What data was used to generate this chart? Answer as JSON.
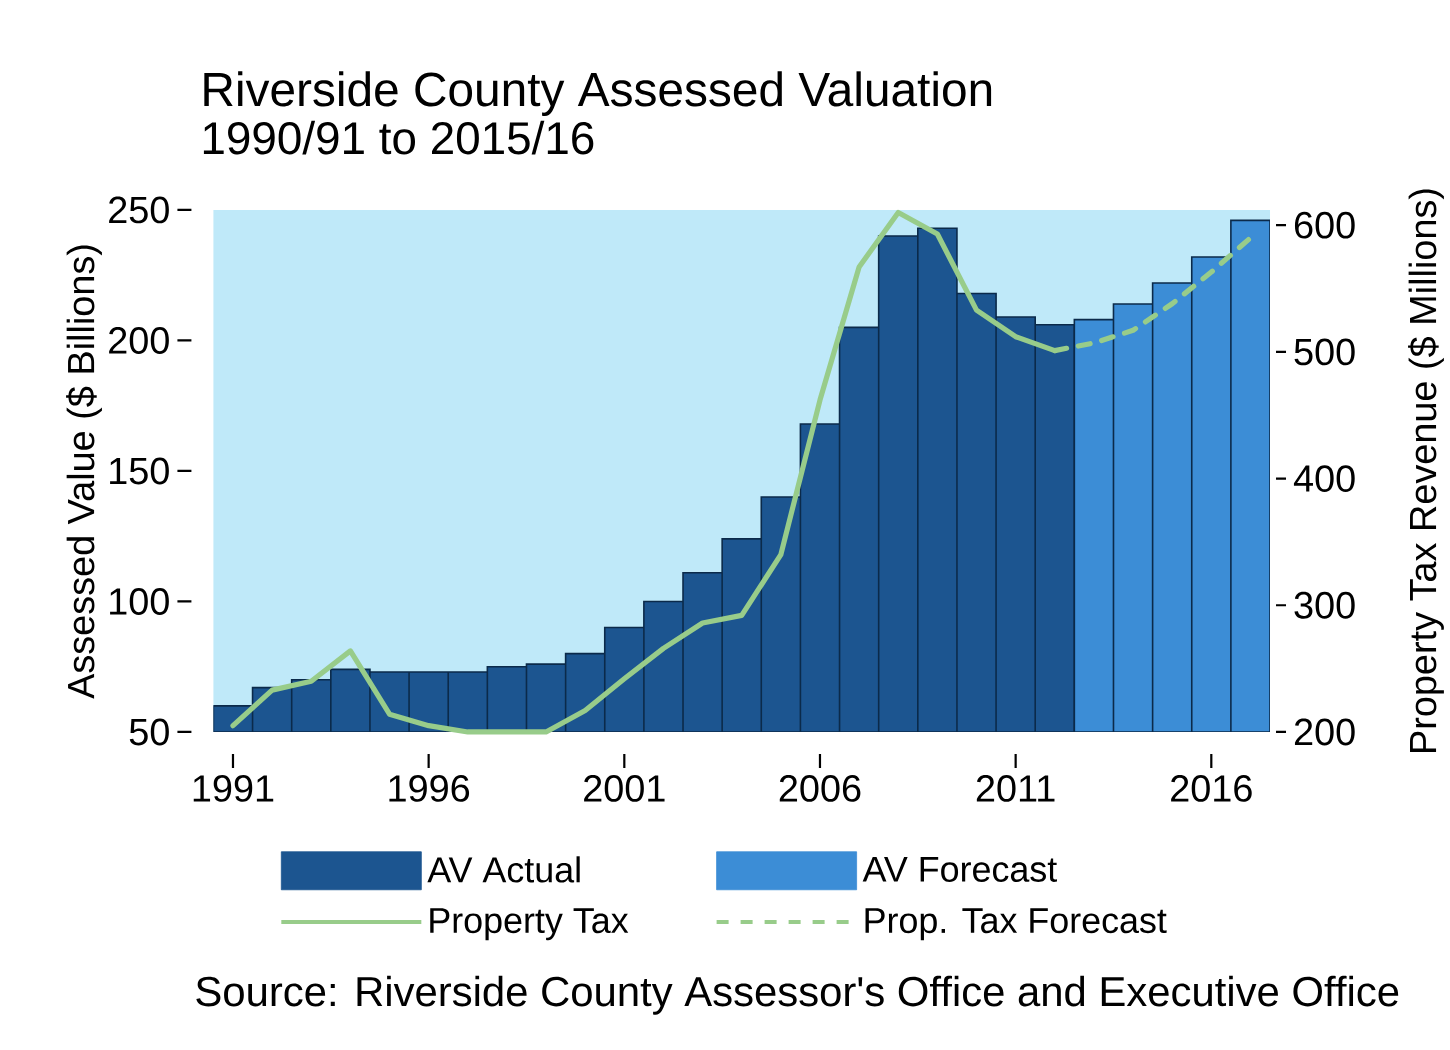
{
  "chart_data": {
    "type": "bar",
    "title": "Riverside County Assessed Valuation",
    "subtitle": "1990/91 to 2015/16",
    "ylabel": "Assessed Value ($ Billions)",
    "y2label": "Property Tax Revenue ($ Millions)",
    "x": [
      1991,
      1992,
      1993,
      1994,
      1995,
      1996,
      1997,
      1998,
      1999,
      2000,
      2001,
      2002,
      2003,
      2004,
      2005,
      2006,
      2007,
      2008,
      2009,
      2010,
      2011,
      2012,
      2013,
      2014,
      2015,
      2016,
      2017
    ],
    "xlim": [
      1990.5,
      2017.5
    ],
    "xticks": [
      1991,
      1996,
      2001,
      2006,
      2011,
      2016
    ],
    "ylim": [
      50,
      250
    ],
    "yticks": [
      50,
      100,
      150,
      200,
      250
    ],
    "y2lim": [
      200,
      612
    ],
    "y2ticks": [
      200,
      300,
      400,
      500,
      600
    ],
    "series": [
      {
        "name": "AV Actual",
        "color": "#1c5590",
        "values": [
          60,
          67,
          70,
          74,
          73,
          73,
          73,
          75,
          76,
          80,
          90,
          100,
          111,
          124,
          140,
          168,
          205,
          240,
          243,
          218,
          209,
          206,
          null,
          null,
          null,
          null,
          null
        ]
      },
      {
        "name": "AV Forecast",
        "color": "#3c8dd6",
        "values": [
          null,
          null,
          null,
          null,
          null,
          null,
          null,
          null,
          null,
          null,
          null,
          null,
          null,
          null,
          null,
          null,
          null,
          null,
          null,
          null,
          null,
          null,
          208,
          214,
          222,
          232,
          246
        ]
      },
      {
        "name": "Property Tax",
        "type": "line",
        "axis": "y2",
        "color": "#98cc8a",
        "line_style": "solid",
        "values": [
          205,
          233,
          240,
          264,
          214,
          205,
          200,
          200,
          200,
          217,
          242,
          266,
          286,
          292,
          340,
          462,
          567,
          610,
          593,
          533,
          512,
          501,
          null,
          null,
          null,
          null,
          null
        ]
      },
      {
        "name": "Prop. Tax Forecast",
        "type": "line",
        "axis": "y2",
        "color": "#98cc8a",
        "line_style": "dashed",
        "values": [
          null,
          null,
          null,
          null,
          null,
          null,
          null,
          null,
          null,
          null,
          null,
          null,
          null,
          null,
          null,
          null,
          null,
          null,
          null,
          null,
          null,
          501,
          507,
          517,
          538,
          563,
          590
        ]
      }
    ],
    "legend": "bottom",
    "annotations": [
      "Source: Riverside County Assessor's Office and Executive Office"
    ]
  }
}
